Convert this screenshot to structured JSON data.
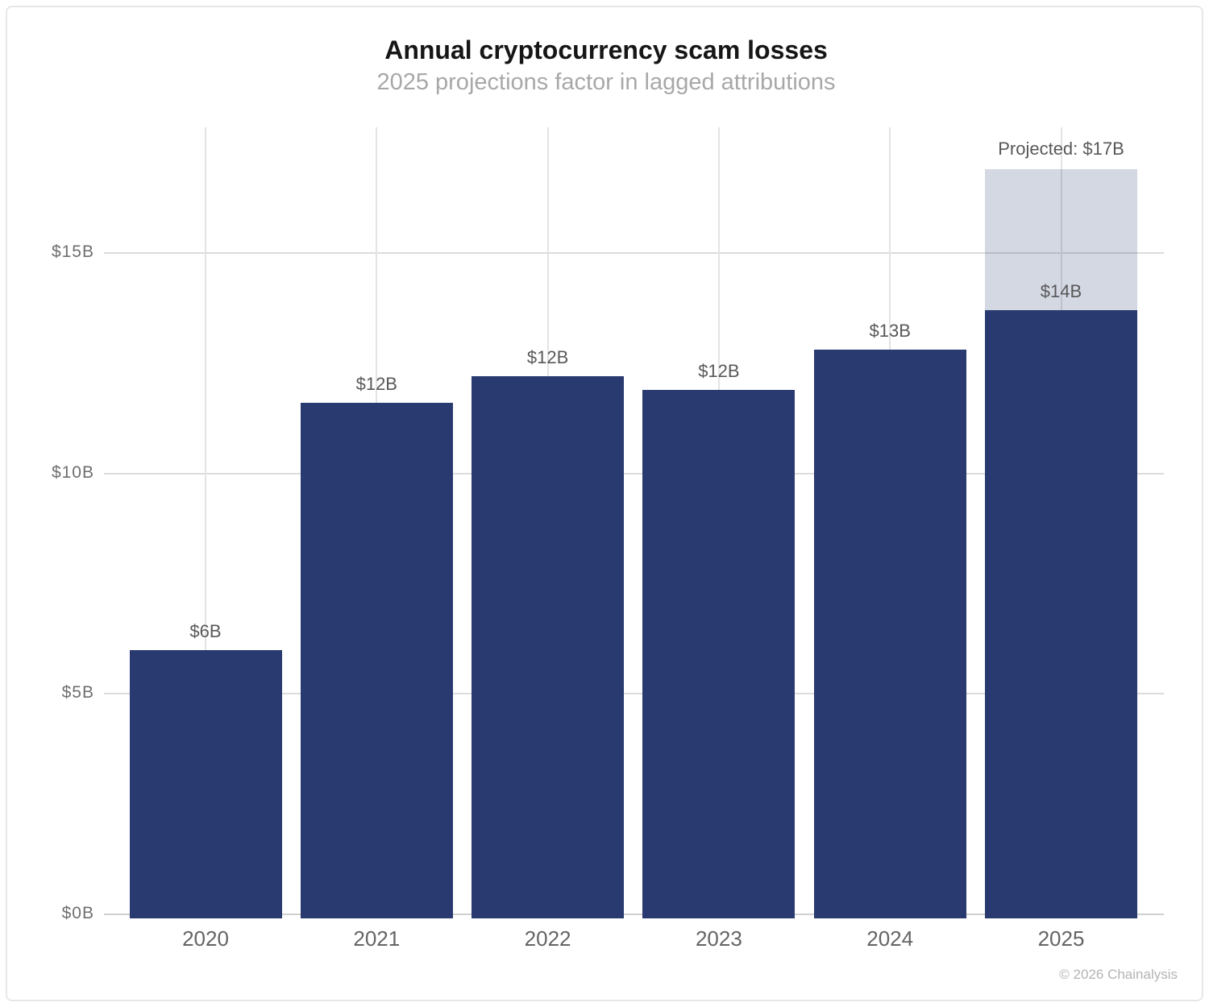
{
  "header": {
    "title": "Annual cryptocurrency scam losses",
    "subtitle": "2025 projections factor in lagged attributions"
  },
  "footer": {
    "credit": "© 2026 Chainalysis"
  },
  "colors": {
    "bar": "#293a70",
    "projected_fill": "rgba(41,58,112,0.20)",
    "grid_horizontal": "#dcdcdc",
    "grid_vertical": "#e3e3e3",
    "axis_line": "#cfcfcf"
  },
  "chart_data": {
    "type": "bar",
    "title": "Annual cryptocurrency scam losses",
    "subtitle": "2025 projections factor in lagged attributions",
    "unit": "USD billions",
    "categories": [
      "2020",
      "2021",
      "2022",
      "2023",
      "2024",
      "2025"
    ],
    "values": [
      6.0,
      11.6,
      12.2,
      11.9,
      12.8,
      13.7
    ],
    "value_labels": [
      "$6B",
      "$12B",
      "$12B",
      "$12B",
      "$13B",
      "$14B"
    ],
    "projected": {
      "category": "2025",
      "total_value": 16.9,
      "label": "Projected: $17B"
    },
    "y_ticks": [
      {
        "value": 0,
        "label": "$0B"
      },
      {
        "value": 5,
        "label": "$5B"
      },
      {
        "value": 10,
        "label": "$10B"
      },
      {
        "value": 15,
        "label": "$15B"
      }
    ],
    "ylim": [
      0,
      17.8
    ],
    "grid": true,
    "legend": false
  }
}
